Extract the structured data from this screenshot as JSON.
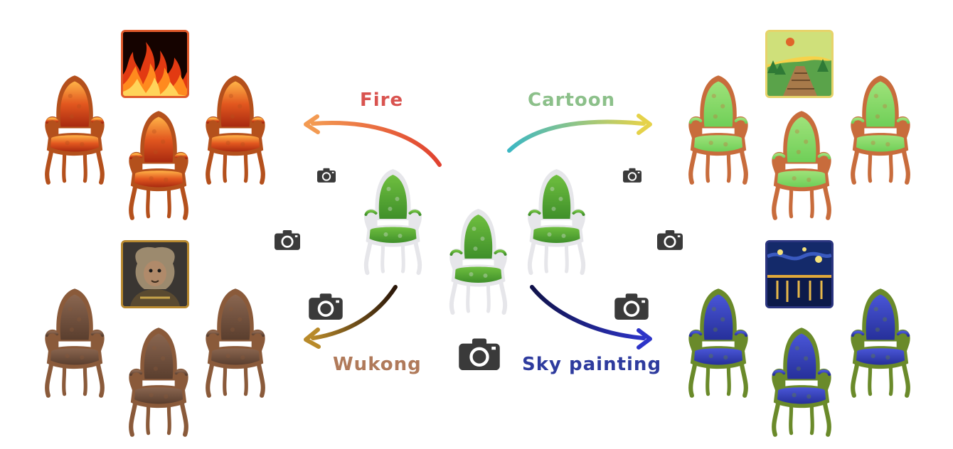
{
  "labels": {
    "fire": "Fire",
    "cartoon": "Cartoon",
    "wukong": "Wukong",
    "sky": "Sky painting"
  },
  "colors": {
    "fire_label": "#d9534f",
    "cartoon_label": "#8cc08a",
    "wukong_label": "#b07a5a",
    "sky_label": "#2e3b9e",
    "fire_frame": "#e05a2b",
    "cartoon_frame": "#e6d36a",
    "wukong_frame": "#b8892f",
    "sky_frame": "#2b3580",
    "camera": "#3a3a3a"
  },
  "icons": [
    "camera-icon",
    "chair-icon",
    "arrow-icon"
  ]
}
